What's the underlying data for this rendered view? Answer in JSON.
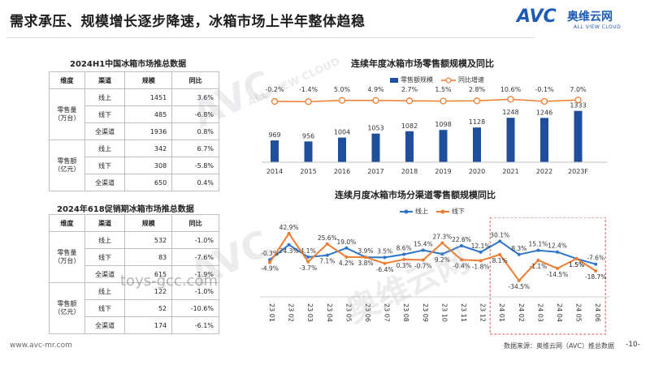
{
  "header": {
    "title": "需求承压、规模增长逐步降速，冰箱市场上半年整体趋稳",
    "logo_avc": "AVC",
    "logo_cn": "奥维云网",
    "logo_en": "ALL VIEW CLOUD"
  },
  "table1": {
    "title": "2024H1中国冰箱市场推总数据",
    "headers": [
      "维度",
      "渠道",
      "规模",
      "同比"
    ],
    "groups": [
      {
        "dimension": "零售量\n（万台）",
        "rows": [
          {
            "channel": "线上",
            "value": "1451",
            "yoy": "3.6%"
          },
          {
            "channel": "线下",
            "value": "485",
            "yoy": "-6.8%"
          },
          {
            "channel": "全渠道",
            "value": "1936",
            "yoy": "0.8%"
          }
        ]
      },
      {
        "dimension": "零售额\n（亿元）",
        "rows": [
          {
            "channel": "线上",
            "value": "342",
            "yoy": "6.7%"
          },
          {
            "channel": "线下",
            "value": "308",
            "yoy": "-5.8%"
          },
          {
            "channel": "全渠道",
            "value": "650",
            "yoy": "0.4%"
          }
        ]
      }
    ]
  },
  "table2": {
    "title": "2024年618促销期冰箱市场推总数据",
    "headers": [
      "维度",
      "渠道",
      "规模",
      "同比"
    ],
    "groups": [
      {
        "dimension": "零售量\n（万台）",
        "rows": [
          {
            "channel": "线上",
            "value": "532",
            "yoy": "-1.0%"
          },
          {
            "channel": "线下",
            "value": "83",
            "yoy": "-7.6%"
          },
          {
            "channel": "全渠道",
            "value": "615",
            "yoy": "-1.9%"
          }
        ]
      },
      {
        "dimension": "零售额\n（亿元）",
        "rows": [
          {
            "channel": "线上",
            "value": "122",
            "yoy": "-1.0%"
          },
          {
            "channel": "线下",
            "value": "52",
            "yoy": "-10.6%"
          },
          {
            "channel": "全渠道",
            "value": "174",
            "yoy": "-6.1%"
          }
        ]
      }
    ]
  },
  "chart_data": [
    {
      "type": "bar",
      "title": "连续年度冰箱市场零售额规模及同比",
      "categories": [
        "2014",
        "2015",
        "2016",
        "2017",
        "2018",
        "2019",
        "2020",
        "2021",
        "2022",
        "2023F"
      ],
      "series": [
        {
          "name": "零售额规模",
          "values": [
            969,
            956,
            1004,
            1053,
            1082,
            1098,
            1128,
            1248,
            1246,
            1333
          ],
          "color": "#1f4e9c"
        },
        {
          "name": "同比增速",
          "values": [
            -0.2,
            -1.4,
            5.0,
            4.9,
            2.7,
            1.5,
            2.8,
            10.6,
            -0.1,
            7.0
          ],
          "labels": [
            "-0.2%",
            "-1.4%",
            "5.0%",
            "4.9%",
            "2.7%",
            "1.5%",
            "2.8%",
            "10.6%",
            "-0.1%",
            "7.0%"
          ],
          "color": "#ed7d31"
        }
      ],
      "legend": "top"
    },
    {
      "type": "line",
      "title": "连续月度冰箱市场分渠道零售额规模同比",
      "categories": [
        "23 01",
        "23 02",
        "23 03",
        "23 04",
        "23 05",
        "23 06",
        "23 07",
        "23 08",
        "23 09",
        "23 10",
        "23 11",
        "23 12",
        "24 01",
        "24 02",
        "24 03",
        "24 04",
        "24 05",
        "24 06"
      ],
      "series": [
        {
          "name": "线上",
          "color": "#2e75c9",
          "values": [
            -0.3,
            24.3,
            4.1,
            7.1,
            19.0,
            3.9,
            3.5,
            8.6,
            15.4,
            9.2,
            22.6,
            12.1,
            30.1,
            8.3,
            15.1,
            12.4,
            1.5,
            -7.6
          ],
          "labels": [
            "-0.3%",
            "24.3%",
            "4.1%",
            "7.1%",
            "19.0%",
            "3.9%",
            "3.5%",
            "8.6%",
            "15.4%",
            "9.2%",
            "22.6%",
            "12.1%",
            "30.1%",
            "8.3%",
            "15.1%",
            "12.4%",
            "1.5%",
            "-7.6%"
          ]
        },
        {
          "name": "线下",
          "color": "#ed7d31",
          "values": [
            -4.9,
            42.9,
            -3.7,
            25.6,
            4.2,
            3.8,
            -6.4,
            0.3,
            -0.7,
            27.3,
            -0.4,
            -1.8,
            8.1,
            -34.5,
            -1.1,
            -14.5,
            1.5,
            -18.7
          ],
          "labels": [
            "-4.9%",
            "42.9%",
            "-3.7%",
            "25.6%",
            "4.2%",
            "3.8%",
            "-6.4%",
            "0.3%",
            "-0.7%",
            "27.3%",
            "-0.4%",
            "-1.8%",
            "8.1%",
            "-34.5%",
            "-1.1%",
            "-14.5%",
            "1.5%",
            "-18.7%"
          ]
        }
      ],
      "ylim": [
        -40,
        48
      ],
      "legend": "top",
      "highlight_range": [
        "24 01",
        "24 06"
      ]
    }
  ],
  "watermarks": [
    "AVC",
    "奥维云网",
    "ALL VIEW CLOUD"
  ],
  "watermark_url": "toys-gcc.com",
  "footer": {
    "url": "www.avc-mr.com",
    "source": "数据来源：奥维云网（AVC）推总数据",
    "page": "-10-"
  }
}
